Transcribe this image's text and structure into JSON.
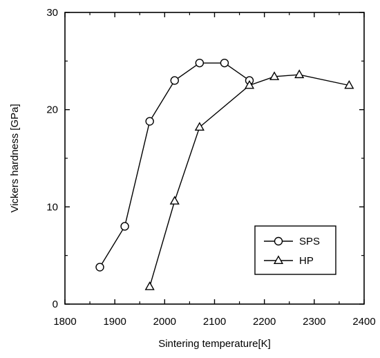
{
  "chart_data": {
    "type": "line",
    "title": "",
    "xlabel": "Sintering temperature[K]",
    "ylabel": "Vickers hardness [GPa]",
    "xlim": [
      1800,
      2400
    ],
    "ylim": [
      0,
      30
    ],
    "xticks": [
      1800,
      1900,
      2000,
      2100,
      2200,
      2300,
      2400
    ],
    "xminor": [
      1850,
      1950,
      2050,
      2150,
      2250,
      2350
    ],
    "yticks": [
      0,
      10,
      20,
      30
    ],
    "yminor": [
      5,
      15,
      25
    ],
    "grid": false,
    "legend_position": "bottom-right",
    "series": [
      {
        "name": "SPS",
        "marker": "circle",
        "x": [
          1870,
          1920,
          1970,
          2020,
          2070,
          2120,
          2170
        ],
        "y": [
          3.8,
          8.0,
          18.8,
          23.0,
          24.8,
          24.8,
          23.0
        ]
      },
      {
        "name": "HP",
        "marker": "triangle",
        "x": [
          1970,
          2020,
          2070,
          2170,
          2220,
          2270,
          2370
        ],
        "y": [
          1.8,
          10.6,
          18.2,
          22.5,
          23.4,
          23.6,
          22.5
        ]
      }
    ]
  }
}
